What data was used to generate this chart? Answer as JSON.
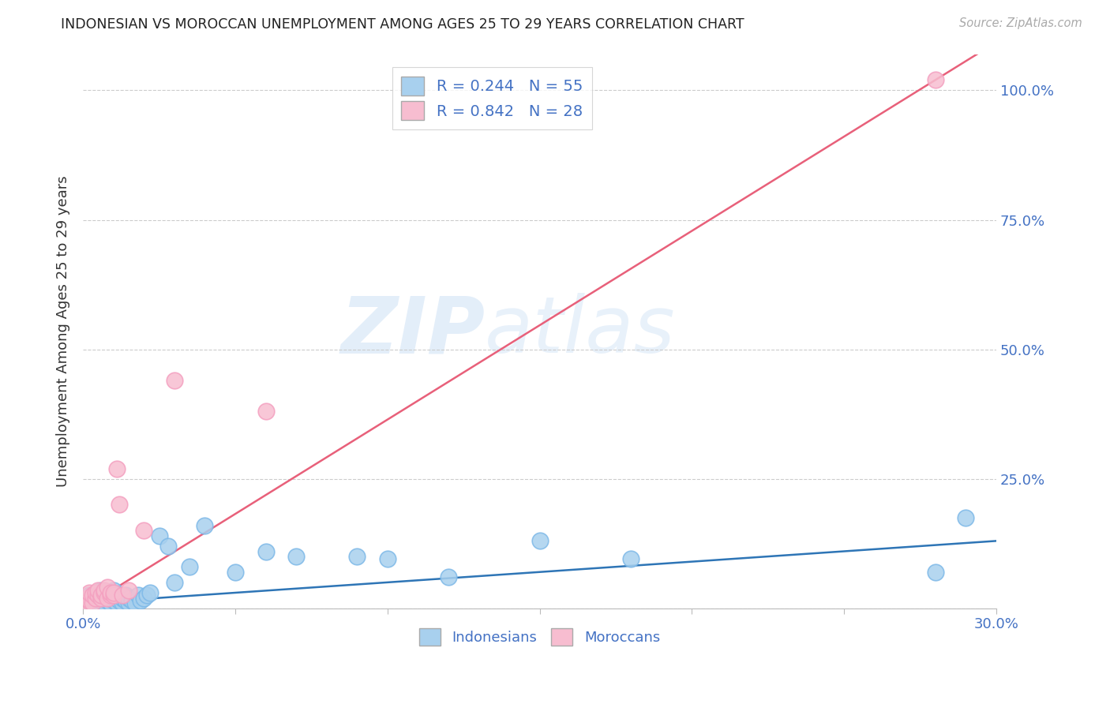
{
  "title": "INDONESIAN VS MOROCCAN UNEMPLOYMENT AMONG AGES 25 TO 29 YEARS CORRELATION CHART",
  "source": "Source: ZipAtlas.com",
  "ylabel": "Unemployment Among Ages 25 to 29 years",
  "xlim": [
    0.0,
    0.3
  ],
  "ylim": [
    0.0,
    1.07
  ],
  "yticks": [
    0.0,
    0.25,
    0.5,
    0.75,
    1.0
  ],
  "ytick_labels": [
    "",
    "25.0%",
    "50.0%",
    "75.0%",
    "100.0%"
  ],
  "xticks": [
    0.0,
    0.05,
    0.1,
    0.15,
    0.2,
    0.25,
    0.3
  ],
  "xtick_labels": [
    "0.0%",
    "",
    "",
    "",
    "",
    "",
    "30.0%"
  ],
  "indonesia_color": "#A8D0EE",
  "indonesia_edge_color": "#7EB9E8",
  "morocco_color": "#F7BDD0",
  "morocco_edge_color": "#F4A0C0",
  "indonesia_line_color": "#2E75B6",
  "morocco_line_color": "#E8607A",
  "legend_label_indo": "R = 0.244   N = 55",
  "legend_label_mor": "R = 0.842   N = 28",
  "watermark_zip": "ZIP",
  "watermark_atlas": "atlas",
  "title_color": "#222222",
  "tick_label_color": "#4472C4",
  "indo_label": "Indonesians",
  "mor_label": "Moroccans",
  "indonesia_x": [
    0.001,
    0.002,
    0.002,
    0.003,
    0.003,
    0.004,
    0.004,
    0.005,
    0.005,
    0.005,
    0.006,
    0.006,
    0.006,
    0.007,
    0.007,
    0.007,
    0.008,
    0.008,
    0.009,
    0.009,
    0.01,
    0.01,
    0.01,
    0.011,
    0.011,
    0.012,
    0.012,
    0.013,
    0.013,
    0.014,
    0.014,
    0.015,
    0.015,
    0.016,
    0.017,
    0.018,
    0.019,
    0.02,
    0.021,
    0.022,
    0.025,
    0.028,
    0.03,
    0.035,
    0.04,
    0.05,
    0.06,
    0.07,
    0.09,
    0.1,
    0.12,
    0.15,
    0.18,
    0.28,
    0.29
  ],
  "indonesia_y": [
    0.02,
    0.015,
    0.025,
    0.01,
    0.02,
    0.015,
    0.03,
    0.01,
    0.02,
    0.03,
    0.015,
    0.025,
    0.035,
    0.01,
    0.02,
    0.03,
    0.015,
    0.025,
    0.01,
    0.02,
    0.015,
    0.025,
    0.035,
    0.01,
    0.02,
    0.015,
    0.025,
    0.01,
    0.02,
    0.015,
    0.025,
    0.01,
    0.02,
    0.015,
    0.01,
    0.025,
    0.015,
    0.02,
    0.025,
    0.03,
    0.14,
    0.12,
    0.05,
    0.08,
    0.16,
    0.07,
    0.11,
    0.1,
    0.1,
    0.095,
    0.06,
    0.13,
    0.095,
    0.07,
    0.175
  ],
  "morocco_x": [
    0.001,
    0.001,
    0.002,
    0.002,
    0.003,
    0.003,
    0.004,
    0.004,
    0.005,
    0.005,
    0.006,
    0.006,
    0.007,
    0.007,
    0.008,
    0.008,
    0.009,
    0.009,
    0.01,
    0.01,
    0.011,
    0.012,
    0.013,
    0.015,
    0.02,
    0.03,
    0.06,
    0.28
  ],
  "morocco_y": [
    0.01,
    0.02,
    0.015,
    0.03,
    0.01,
    0.025,
    0.02,
    0.03,
    0.025,
    0.035,
    0.02,
    0.025,
    0.03,
    0.035,
    0.02,
    0.04,
    0.025,
    0.03,
    0.025,
    0.03,
    0.27,
    0.2,
    0.025,
    0.035,
    0.15,
    0.44,
    0.38,
    1.02
  ]
}
